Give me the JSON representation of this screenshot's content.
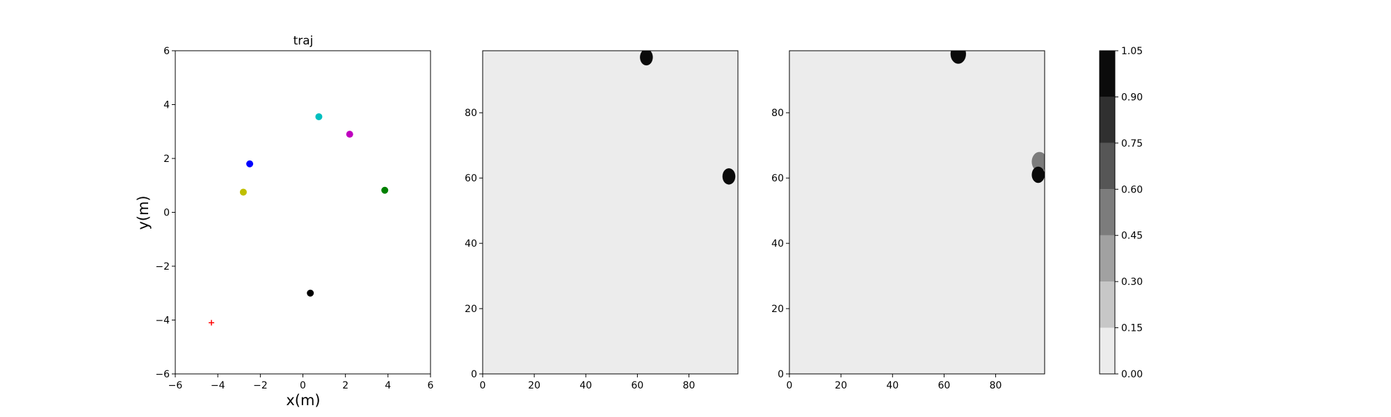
{
  "chart_data": [
    {
      "type": "scatter",
      "title": "traj",
      "xlabel": "x(m)",
      "ylabel": "y(m)",
      "xlim": [
        -6,
        6
      ],
      "ylim": [
        -6,
        6
      ],
      "xticks": [
        -6,
        -4,
        -2,
        0,
        2,
        4,
        6
      ],
      "yticks": [
        -6,
        -4,
        -2,
        0,
        2,
        4,
        6
      ],
      "grid": false,
      "points": [
        {
          "x": -2.5,
          "y": 1.8,
          "color": "#0000ff",
          "marker": "dot"
        },
        {
          "x": -2.8,
          "y": 0.75,
          "color": "#bfbf00",
          "marker": "dot"
        },
        {
          "x": 0.75,
          "y": 3.55,
          "color": "#00bfbf",
          "marker": "dot"
        },
        {
          "x": 2.2,
          "y": 2.9,
          "color": "#bf00bf",
          "marker": "dot"
        },
        {
          "x": 3.85,
          "y": 0.82,
          "color": "#008000",
          "marker": "dot"
        },
        {
          "x": 0.35,
          "y": -3.0,
          "color": "#000000",
          "marker": "dot"
        },
        {
          "x": -4.3,
          "y": -4.1,
          "color": "#ff0000",
          "marker": "plus"
        }
      ]
    },
    {
      "type": "heatmap",
      "xlim": [
        0,
        99
      ],
      "ylim": [
        0,
        99
      ],
      "xticks": [
        0,
        20,
        40,
        60,
        80
      ],
      "yticks": [
        0,
        20,
        40,
        60,
        80
      ],
      "background_value": 0.05,
      "blobs": [
        {
          "x": 63.5,
          "y": 97,
          "radius": 2.5,
          "value": 1.0
        },
        {
          "x": 95.5,
          "y": 60.5,
          "radius": 2.5,
          "value": 1.0
        }
      ]
    },
    {
      "type": "heatmap",
      "xlim": [
        0,
        99
      ],
      "ylim": [
        0,
        99
      ],
      "xticks": [
        0,
        20,
        40,
        60,
        80
      ],
      "yticks": [
        0,
        20,
        40,
        60,
        80
      ],
      "background_value": 0.05,
      "blobs": [
        {
          "x": 65.5,
          "y": 98,
          "radius": 3.0,
          "value": 1.0
        },
        {
          "x": 97,
          "y": 65,
          "radius": 3.0,
          "value": 0.5
        },
        {
          "x": 96.5,
          "y": 61,
          "radius": 2.5,
          "value": 1.0
        }
      ]
    }
  ],
  "colorbar": {
    "ticks": [
      "0.00",
      "0.15",
      "0.30",
      "0.45",
      "0.60",
      "0.75",
      "0.90",
      "1.05"
    ],
    "colors": [
      "#ececec",
      "#c7c7c7",
      "#a1a1a1",
      "#7c7c7c",
      "#565656",
      "#303030",
      "#0b0b0b"
    ]
  }
}
